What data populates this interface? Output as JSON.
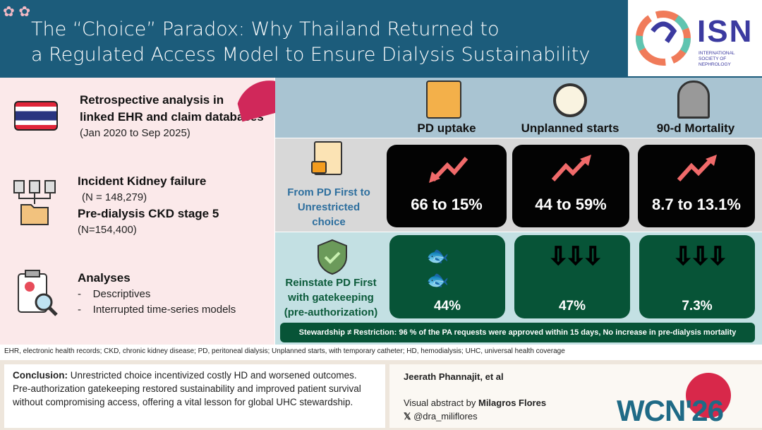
{
  "header": {
    "title_line1": "The “Choice” Paradox: Why Thailand Returned to",
    "title_line2": "a Regulated Access Model to Ensure Dialysis Sustainability",
    "logo": {
      "text": "ISN",
      "subtitle": "INTERNATIONAL SOCIETY OF NEPHROLOGY"
    }
  },
  "left": {
    "study": {
      "title_line1": "Retrospective analysis in",
      "title_line2": "linked EHR and claim databases",
      "period": "(Jan 2020 to Sep 2025)",
      "icon": "thailand-flag-icon"
    },
    "population": {
      "group1": "Incident Kidney failure",
      "n1": "(N = 148,279)",
      "group2": "Pre-dialysis CKD stage 5",
      "n2": "(N=154,400)",
      "icon": "documents-folder-icon"
    },
    "analyses": {
      "title": "Analyses",
      "items": [
        "Descriptives",
        "Interrupted time-series models"
      ],
      "icon": "clipboard-magnifier-icon"
    }
  },
  "columns": [
    {
      "label": "PD uptake",
      "icon": "patient-dialysis-icon"
    },
    {
      "label": "Unplanned starts",
      "icon": "stopwatch-icon"
    },
    {
      "label": "90-d Mortality",
      "icon": "tombstone-icon"
    }
  ],
  "rows": [
    {
      "label_lines": [
        "From PD First to",
        "Unrestricted",
        "choice"
      ],
      "icon": "unlocked-document-icon",
      "values": [
        "66 to 15%",
        "44 to 59%",
        "8.7 to 13.1%"
      ],
      "trend_icons": [
        "trend-down-arrow-icon",
        "trend-up-arrow-icon",
        "trend-up-arrow-icon"
      ]
    },
    {
      "label_lines": [
        "Reinstate PD First",
        "with gatekeeping",
        "(pre-authorization)"
      ],
      "icon": "shield-check-icon",
      "values": [
        "44%",
        "47%",
        "7.3%"
      ],
      "trend_icons": [
        "koi-fish-icon",
        "down-arrows-icon",
        "down-arrows-icon"
      ]
    }
  ],
  "stewardship": "Stewardship ≠ Restriction: 96 % of the PA requests were approved within 15 days,  No increase in pre-dialysis mortality",
  "footnote": "EHR, electronic health records; CKD, chronic kidney disease; PD, peritoneal dialysis; Unplanned starts, with temporary catheter; HD, hemodialysis; UHC, universal health coverage",
  "conclusion": {
    "label": "Conclusion:",
    "text": " Unrestricted choice incentivized costly HD and worsened outcomes. Pre-authorization gatekeeping restored sustainability and improved patient survival without compromising access, offering a vital lesson for global UHC stewardship."
  },
  "credits": {
    "authors": "Jeerath Phannajit, et al",
    "abstract_by": "Visual abstract by ",
    "artist": "Milagros Flores",
    "handle": "@dra_miliflores",
    "congress": "WCN'26"
  },
  "colors": {
    "header": "#1c5c7b",
    "black_card": "#030303",
    "green_card": "#075437",
    "trend": "#f06a6a",
    "row1_label": "#2e6f9e",
    "row2_label": "#0b5a3a"
  }
}
